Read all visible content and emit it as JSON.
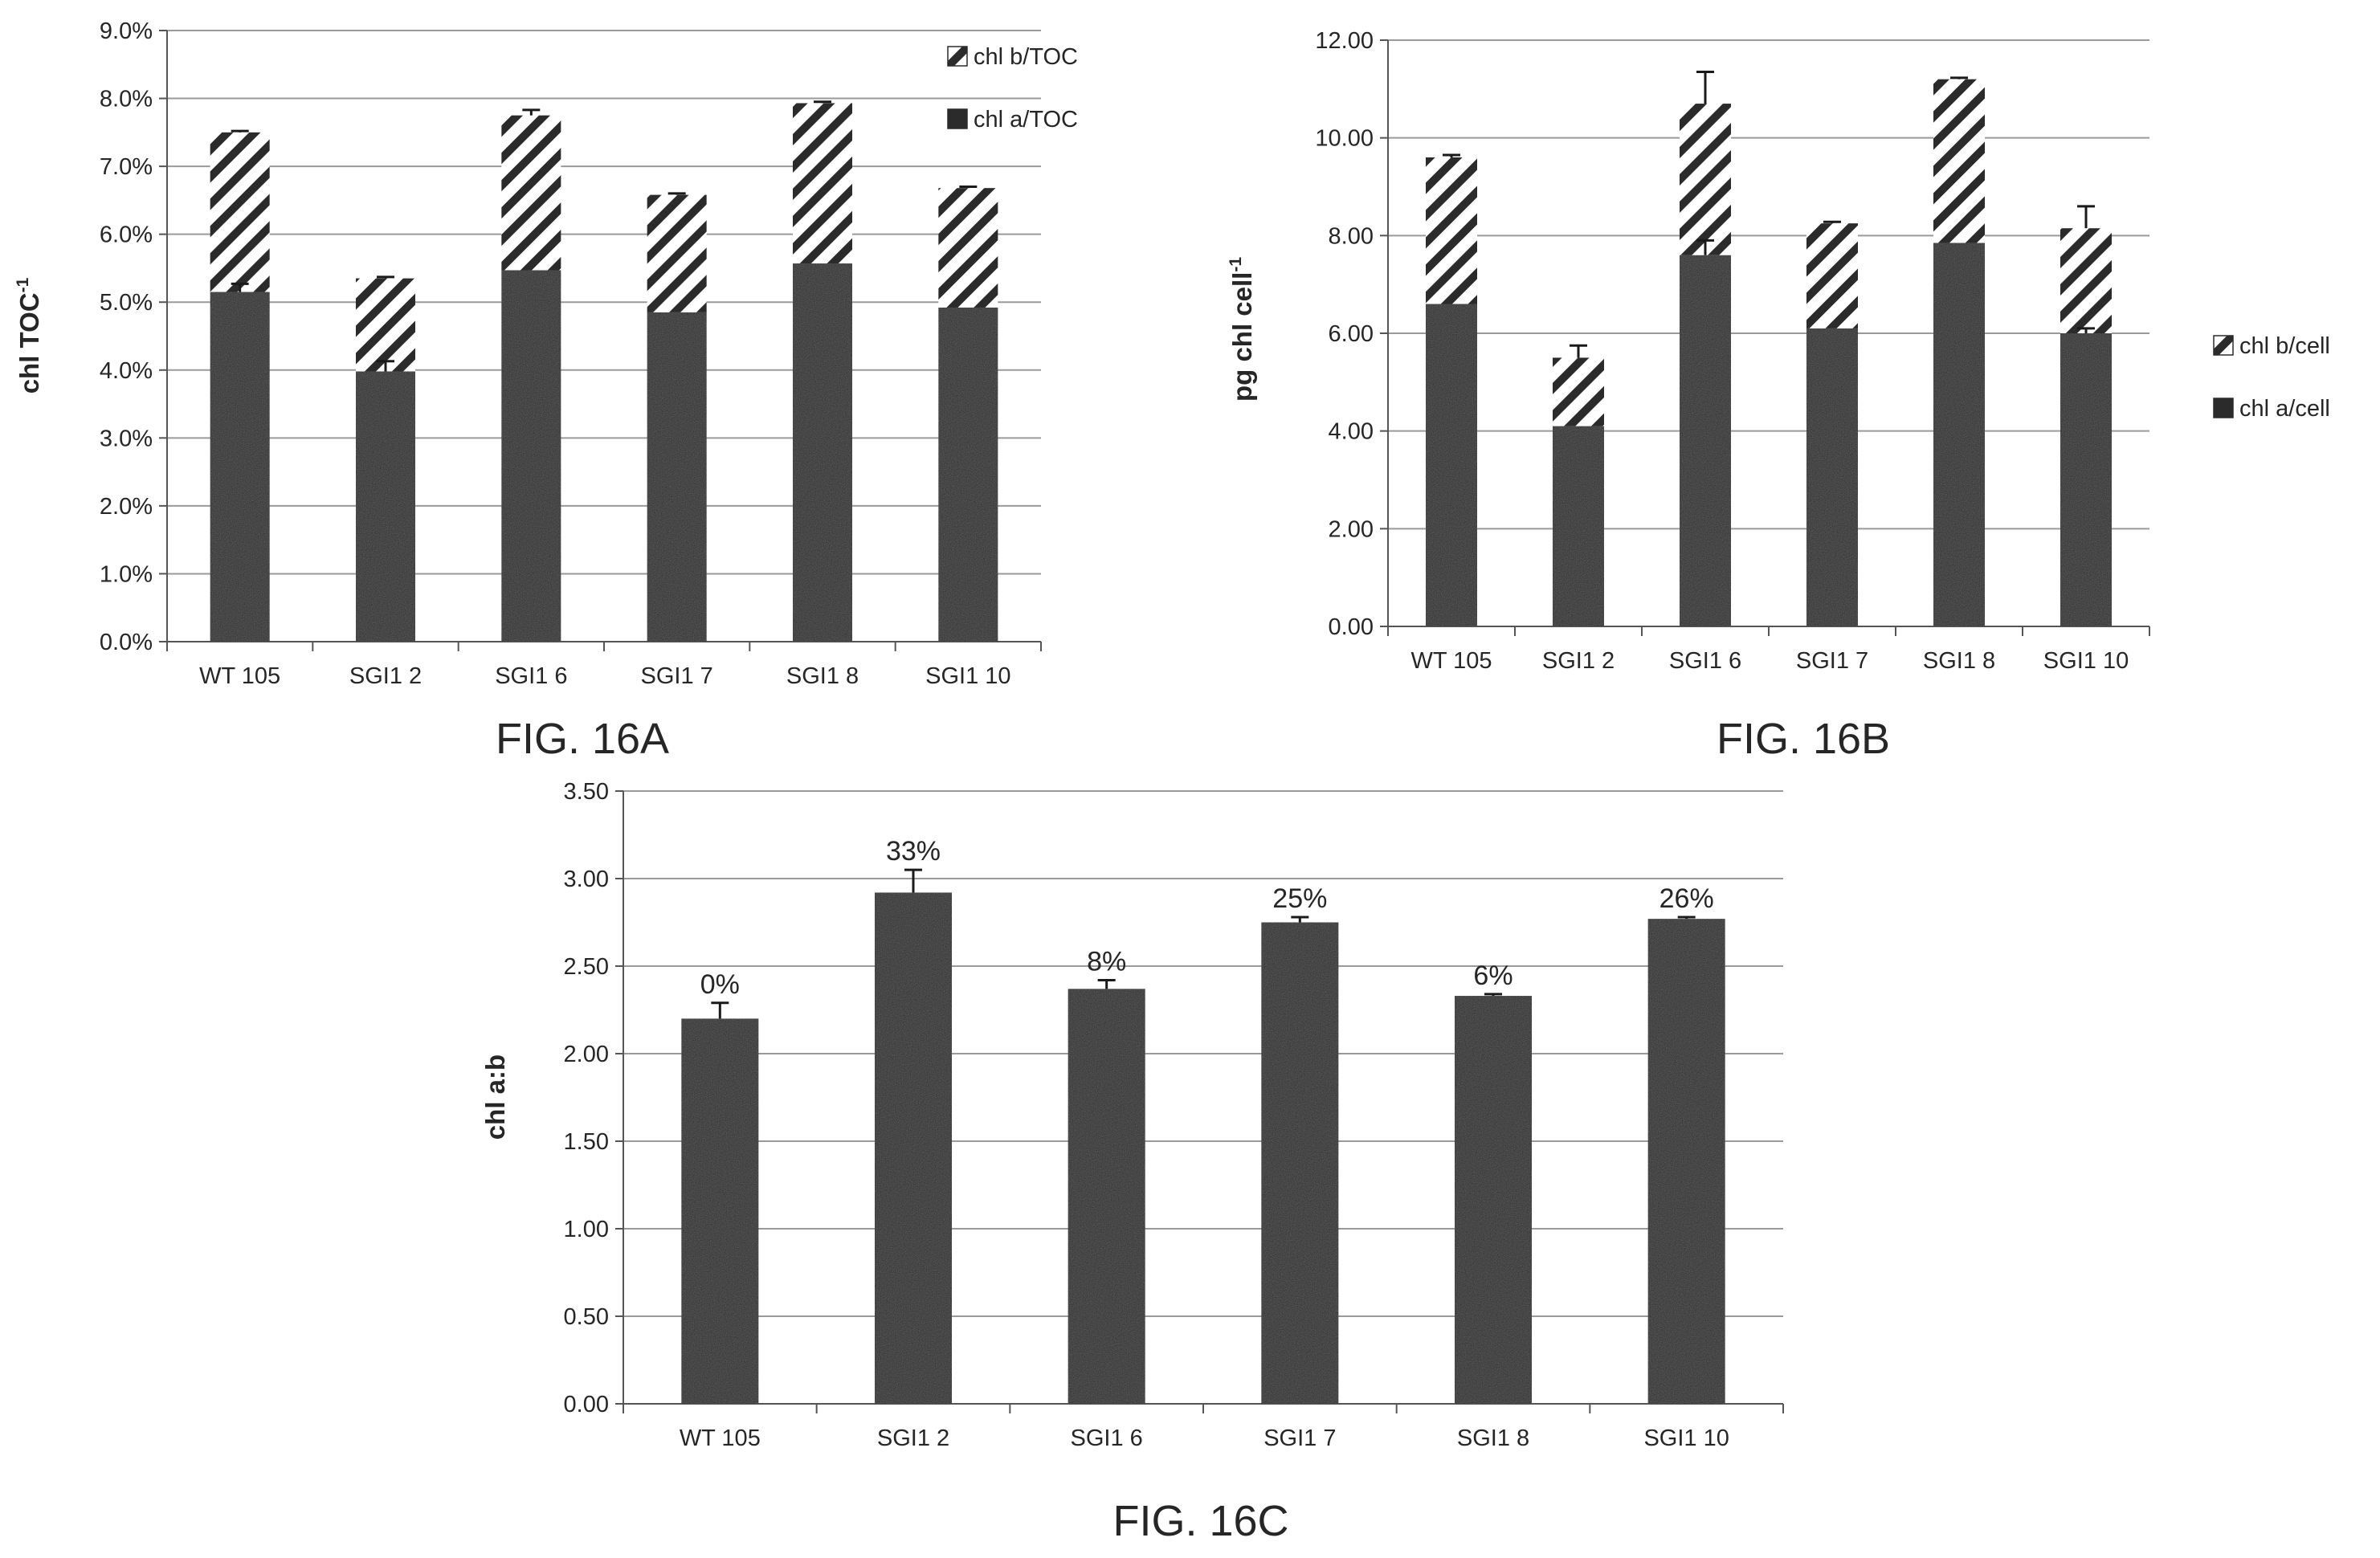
{
  "colors": {
    "background": "#ffffff",
    "bar_fill": "#2b2b2b",
    "hatch_fill": "#ffffff",
    "hatch_stroke": "#2b2b2b",
    "gridline": "#9a9a9a",
    "axis": "#555555",
    "text": "#262626"
  },
  "chart_data": [
    {
      "id": "16A",
      "type": "bar",
      "stacked": true,
      "caption": "FIG. 16A",
      "ylabel": "chl TOC",
      "ylabel_superscript": "-1",
      "xlabel": "",
      "categories": [
        "WT 105",
        "SGI1 2",
        "SGI1 6",
        "SGI1 7",
        "SGI1 8",
        "SGI1 10"
      ],
      "ylim": [
        0,
        0.09
      ],
      "yticks": [
        0,
        0.01,
        0.02,
        0.03,
        0.04,
        0.05,
        0.06,
        0.07,
        0.08,
        0.09
      ],
      "ytick_labels": [
        "0.0%",
        "1.0%",
        "2.0%",
        "3.0%",
        "4.0%",
        "5.0%",
        "6.0%",
        "7.0%",
        "8.0%",
        "9.0%"
      ],
      "grid": true,
      "legend_position": "top-right inside",
      "series": [
        {
          "name": "chl a/TOC",
          "pattern": "solid",
          "values": [
            0.0515,
            0.0398,
            0.0547,
            0.0485,
            0.0557,
            0.0492
          ],
          "errors": [
            0.0012,
            0.0015,
            0,
            0,
            0,
            0
          ]
        },
        {
          "name": "chl b/TOC",
          "pattern": "hatched",
          "values": [
            0.0235,
            0.0137,
            0.0228,
            0.0173,
            0.0236,
            0.0176
          ],
          "errors": [
            0.0002,
            0.0002,
            0.0008,
            0.0002,
            0.0002,
            0.0002
          ]
        }
      ]
    },
    {
      "id": "16B",
      "type": "bar",
      "stacked": true,
      "caption": "FIG. 16B",
      "ylabel": "pg chl cell",
      "ylabel_superscript": "-1",
      "xlabel": "",
      "categories": [
        "WT 105",
        "SGI1 2",
        "SGI1 6",
        "SGI1 7",
        "SGI1 8",
        "SGI1 10"
      ],
      "ylim": [
        0,
        12
      ],
      "yticks": [
        0,
        2,
        4,
        6,
        8,
        10,
        12
      ],
      "ytick_labels": [
        "0.00",
        "2.00",
        "4.00",
        "6.00",
        "8.00",
        "10.00",
        "12.00"
      ],
      "grid": true,
      "legend_position": "right, outside",
      "series": [
        {
          "name": "chl a/cell",
          "pattern": "solid",
          "values": [
            6.6,
            4.1,
            7.6,
            6.1,
            7.85,
            6.0
          ],
          "errors": [
            0,
            0,
            0.3,
            0,
            0,
            0.1
          ]
        },
        {
          "name": "chl b/cell",
          "pattern": "hatched",
          "values": [
            3.0,
            1.4,
            3.1,
            2.15,
            3.35,
            2.15
          ],
          "errors": [
            0.05,
            0.25,
            0.65,
            0.03,
            0.03,
            0.45
          ]
        }
      ]
    },
    {
      "id": "16C",
      "type": "bar",
      "stacked": false,
      "caption": "FIG. 16C",
      "ylabel": "chl a:b",
      "xlabel": "",
      "categories": [
        "WT 105",
        "SGI1 2",
        "SGI1 6",
        "SGI1 7",
        "SGI1 8",
        "SGI1 10"
      ],
      "ylim": [
        0,
        3.5
      ],
      "yticks": [
        0,
        0.5,
        1.0,
        1.5,
        2.0,
        2.5,
        3.0,
        3.5
      ],
      "ytick_labels": [
        "0.00",
        "0.50",
        "1.00",
        "1.50",
        "2.00",
        "2.50",
        "3.00",
        "3.50"
      ],
      "grid": true,
      "series": [
        {
          "values": [
            2.2,
            2.92,
            2.37,
            2.75,
            2.33,
            2.77
          ],
          "errors": [
            0.09,
            0.13,
            0.05,
            0.03,
            0.01,
            0.01
          ]
        }
      ],
      "data_labels": [
        "0%",
        "33%",
        "8%",
        "25%",
        "6%",
        "26%"
      ]
    }
  ]
}
